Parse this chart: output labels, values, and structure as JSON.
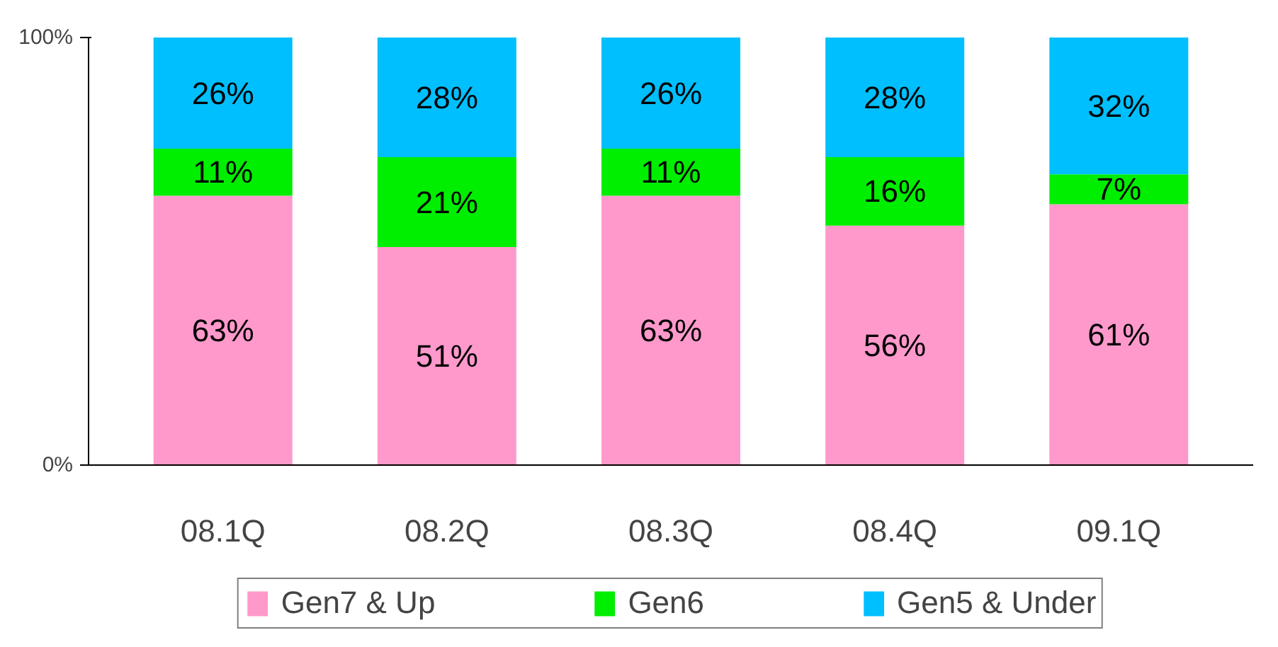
{
  "chart_data": {
    "type": "bar",
    "stacked": true,
    "categories": [
      "08.1Q",
      "08.2Q",
      "08.3Q",
      "08.4Q",
      "09.1Q"
    ],
    "series": [
      {
        "name": "Gen7 & Up",
        "color": "#ff99cc",
        "values": [
          63,
          51,
          63,
          56,
          61
        ],
        "value_labels": [
          "63%",
          "51%",
          "63%",
          "56%",
          "61%"
        ]
      },
      {
        "name": "Gen6",
        "color": "#00ee00",
        "values": [
          11,
          21,
          11,
          16,
          7
        ],
        "value_labels": [
          "11%",
          "21%",
          "11%",
          "16%",
          "7%"
        ]
      },
      {
        "name": "Gen5 & Under",
        "color": "#00bfff",
        "values": [
          26,
          28,
          26,
          28,
          32
        ],
        "value_labels": [
          "26%",
          "28%",
          "26%",
          "28%",
          "32%"
        ]
      }
    ],
    "ylim": [
      0,
      100
    ],
    "yticks": [
      {
        "value": 0,
        "label": "0%"
      },
      {
        "value": 100,
        "label": "100%"
      }
    ],
    "grid": false,
    "legend": "bottom"
  }
}
